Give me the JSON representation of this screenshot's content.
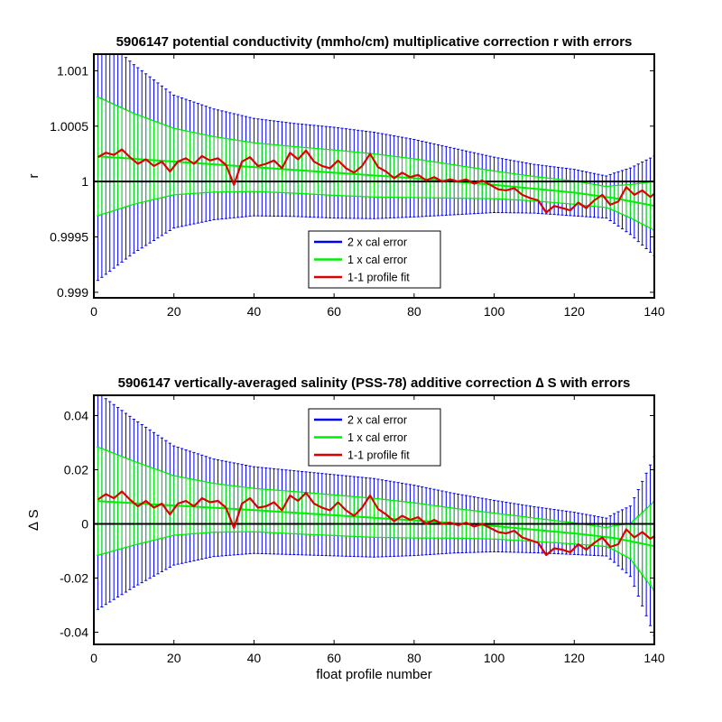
{
  "chart_data": [
    {
      "type": "line",
      "title": "5906147 potential conductivity (mmho/cm) multiplicative correction r with errors",
      "xlabel": "",
      "ylabel": "r",
      "xlim": [
        0,
        140
      ],
      "ylim": [
        0.99895,
        1.00115
      ],
      "xticks": [
        0,
        20,
        40,
        60,
        80,
        100,
        120,
        140
      ],
      "xtick_labels": [
        "0",
        "20",
        "40",
        "60",
        "80",
        "100",
        "120",
        "140"
      ],
      "yticks": [
        0.999,
        0.9995,
        1,
        1.0005,
        1.001
      ],
      "ytick_labels": [
        "0.999",
        "0.9995",
        "1",
        "1.0005",
        "1.001"
      ],
      "reference_line": 1,
      "fit": {
        "x": [
          0,
          20,
          40,
          60,
          80,
          100,
          120,
          130,
          140
        ],
        "y": [
          1.00023,
          1.00018,
          1.00013,
          1.00008,
          1.00003,
          0.99997,
          0.9999,
          0.99985,
          0.99978
        ]
      },
      "error_2x": {
        "x": [
          0,
          10,
          20,
          30,
          40,
          50,
          60,
          70,
          80,
          90,
          100,
          110,
          120,
          128,
          134,
          140
        ],
        "halfwidth": [
          0.00115,
          0.00085,
          0.0006,
          0.0005,
          0.00044,
          0.00042,
          0.00041,
          0.00039,
          0.00035,
          0.0003,
          0.00025,
          0.00022,
          0.00021,
          0.00019,
          0.0003,
          0.00045
        ]
      },
      "error_1x": {
        "x": [
          0,
          10,
          20,
          30,
          40,
          50,
          60,
          70,
          80,
          90,
          100,
          110,
          120,
          128,
          134,
          140
        ],
        "halfwidth": [
          0.00055,
          0.00041,
          0.0003,
          0.00025,
          0.00022,
          0.00021,
          0.000205,
          0.000195,
          0.000175,
          0.00015,
          0.000125,
          0.00011,
          0.000105,
          9.5e-05,
          0.00015,
          0.00022
        ]
      },
      "profile_fit": {
        "x": [
          1,
          3,
          5,
          7,
          9,
          11,
          13,
          15,
          17,
          19,
          21,
          23,
          25,
          27,
          29,
          31,
          33,
          35,
          37,
          39,
          41,
          43,
          45,
          47,
          49,
          51,
          53,
          55,
          57,
          59,
          61,
          63,
          65,
          67,
          69,
          71,
          73,
          75,
          77,
          79,
          81,
          83,
          85,
          87,
          89,
          91,
          93,
          95,
          97,
          99,
          101,
          103,
          105,
          107,
          109,
          111,
          113,
          115,
          117,
          119,
          121,
          123,
          125,
          127,
          129,
          131,
          133,
          135,
          137,
          139,
          140
        ],
        "y": [
          1.00022,
          1.00026,
          1.00024,
          1.00029,
          1.00022,
          1.00016,
          1.0002,
          1.00014,
          1.00018,
          1.00009,
          1.00018,
          1.00021,
          1.00016,
          1.00023,
          1.00019,
          1.00021,
          1.00015,
          0.99997,
          1.00018,
          1.00022,
          1.00014,
          1.00016,
          1.00019,
          1.00012,
          1.00026,
          1.0002,
          1.00028,
          1.00018,
          1.00014,
          1.00012,
          1.00019,
          1.00012,
          1.00008,
          1.00014,
          1.00025,
          1.00013,
          1.00009,
          1.00003,
          1.00008,
          1.00004,
          1.00006,
          1.00001,
          1.00004,
          1.0,
          1.00002,
          1.0,
          1.00002,
          0.99998,
          1.00001,
          0.99997,
          0.99993,
          0.99992,
          0.99994,
          0.99988,
          0.99985,
          0.99983,
          0.99972,
          0.99978,
          0.99976,
          0.99974,
          0.99981,
          0.99976,
          0.99983,
          0.99988,
          0.99979,
          0.99982,
          0.99995,
          0.99988,
          0.99992,
          0.99986,
          0.99989
        ]
      },
      "legend": {
        "placement": "lower-center",
        "entries": [
          {
            "label": "2 x cal error",
            "color": "#0000ee"
          },
          {
            "label": "1 x cal error",
            "color": "#00ee00"
          },
          {
            "label": "1-1 profile fit",
            "color": "#dd0000"
          }
        ]
      },
      "grid": false
    },
    {
      "type": "line",
      "title": "5906147 vertically-averaged salinity (PSS-78) additive correction ∆ S with errors",
      "xlabel": "float profile number",
      "ylabel": "∆ S",
      "xlim": [
        0,
        140
      ],
      "ylim": [
        -0.0445,
        0.0475
      ],
      "xticks": [
        0,
        20,
        40,
        60,
        80,
        100,
        120,
        140
      ],
      "xtick_labels": [
        "0",
        "20",
        "40",
        "60",
        "80",
        "100",
        "120",
        "140"
      ],
      "yticks": [
        -0.04,
        -0.02,
        0,
        0.02,
        0.04
      ],
      "ytick_labels": [
        "-0.04",
        "-0.02",
        "0",
        "0.02",
        "0.04"
      ],
      "reference_line": 0,
      "fit": {
        "x": [
          0,
          20,
          40,
          60,
          80,
          100,
          120,
          130,
          140
        ],
        "y": [
          0.0085,
          0.0068,
          0.0051,
          0.0032,
          0.0013,
          -0.0008,
          -0.0035,
          -0.0052,
          -0.0082
        ]
      },
      "error_2x": {
        "x": [
          0,
          10,
          20,
          30,
          40,
          50,
          60,
          70,
          80,
          90,
          100,
          110,
          120,
          128,
          134,
          140
        ],
        "halfwidth": [
          0.041,
          0.031,
          0.022,
          0.018,
          0.016,
          0.0155,
          0.015,
          0.0145,
          0.013,
          0.011,
          0.0095,
          0.0085,
          0.0078,
          0.007,
          0.013,
          0.033
        ]
      },
      "error_1x": {
        "x": [
          0,
          10,
          20,
          30,
          40,
          50,
          60,
          70,
          80,
          90,
          100,
          110,
          120,
          128,
          134,
          140
        ],
        "halfwidth": [
          0.0205,
          0.0155,
          0.011,
          0.009,
          0.008,
          0.0078,
          0.0075,
          0.0072,
          0.0065,
          0.0055,
          0.0048,
          0.0043,
          0.0039,
          0.0035,
          0.0065,
          0.0165
        ]
      },
      "profile_fit": {
        "x": [
          1,
          3,
          5,
          7,
          9,
          11,
          13,
          15,
          17,
          19,
          21,
          23,
          25,
          27,
          29,
          31,
          33,
          35,
          37,
          39,
          41,
          43,
          45,
          47,
          49,
          51,
          53,
          55,
          57,
          59,
          61,
          63,
          65,
          67,
          69,
          71,
          73,
          75,
          77,
          79,
          81,
          83,
          85,
          87,
          89,
          91,
          93,
          95,
          97,
          99,
          101,
          103,
          105,
          107,
          109,
          111,
          113,
          115,
          117,
          119,
          121,
          123,
          125,
          127,
          129,
          131,
          133,
          135,
          137,
          139,
          140
        ],
        "y": [
          0.009,
          0.011,
          0.0095,
          0.012,
          0.009,
          0.0065,
          0.0085,
          0.006,
          0.0075,
          0.0035,
          0.0075,
          0.0085,
          0.0065,
          0.0095,
          0.008,
          0.0085,
          0.006,
          -0.0015,
          0.0075,
          0.0095,
          0.006,
          0.0065,
          0.008,
          0.005,
          0.0105,
          0.0085,
          0.0115,
          0.0075,
          0.006,
          0.005,
          0.008,
          0.005,
          0.003,
          0.006,
          0.0105,
          0.0055,
          0.0035,
          0.001,
          0.003,
          0.0015,
          0.0025,
          0.0,
          0.0015,
          0.0,
          0.0005,
          -0.0005,
          0.0005,
          -0.001,
          0.0,
          -0.0015,
          -0.003,
          -0.0035,
          -0.0025,
          -0.005,
          -0.006,
          -0.007,
          -0.0115,
          -0.009,
          -0.0095,
          -0.0105,
          -0.0075,
          -0.0095,
          -0.007,
          -0.005,
          -0.0085,
          -0.0075,
          -0.002,
          -0.005,
          -0.003,
          -0.0055,
          -0.0045
        ]
      },
      "legend": {
        "placement": "upper-center",
        "entries": [
          {
            "label": "2 x cal error",
            "color": "#0000ee"
          },
          {
            "label": "1 x cal error",
            "color": "#00ee00"
          },
          {
            "label": "1-1 profile fit",
            "color": "#dd0000"
          }
        ]
      },
      "grid": false
    }
  ]
}
